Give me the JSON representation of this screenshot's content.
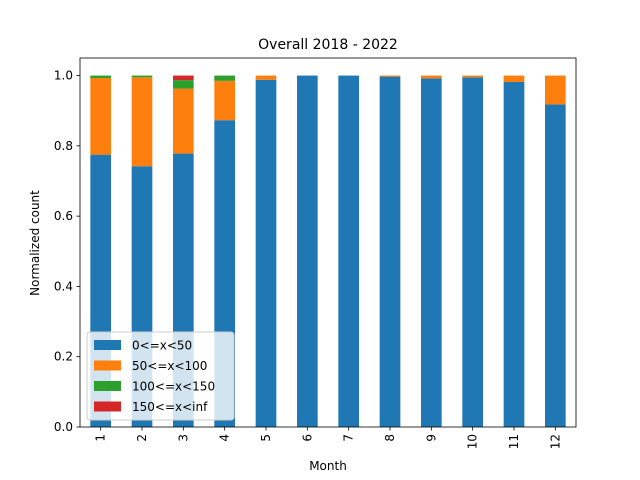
{
  "chart_data": {
    "type": "bar",
    "stacked": true,
    "title": "Overall 2018 - 2022",
    "xlabel": "Month",
    "ylabel": "Normalized count",
    "ylim": [
      0,
      1.05
    ],
    "yticks": [
      0.0,
      0.2,
      0.4,
      0.6,
      0.8,
      1.0
    ],
    "ytick_labels": [
      "0.0",
      "0.2",
      "0.4",
      "0.6",
      "0.8",
      "1.0"
    ],
    "categories": [
      "1",
      "2",
      "3",
      "4",
      "5",
      "6",
      "7",
      "8",
      "9",
      "10",
      "11",
      "12"
    ],
    "legend_position": "lower-left",
    "grid": false,
    "series": [
      {
        "name": "0<=x<50",
        "color": "#1f77b4",
        "values": [
          0.775,
          0.742,
          0.778,
          0.873,
          0.988,
          1.0,
          1.0,
          0.997,
          0.992,
          0.995,
          0.982,
          0.918
        ]
      },
      {
        "name": "50<=x<100",
        "color": "#ff7f0e",
        "values": [
          0.218,
          0.253,
          0.185,
          0.112,
          0.012,
          0.0,
          0.0,
          0.003,
          0.008,
          0.005,
          0.018,
          0.082
        ]
      },
      {
        "name": "100<=x<150",
        "color": "#2ca02c",
        "values": [
          0.007,
          0.005,
          0.024,
          0.015,
          0.0,
          0.0,
          0.0,
          0.0,
          0.0,
          0.0,
          0.0,
          0.0
        ]
      },
      {
        "name": "150<=x<inf",
        "color": "#d62728",
        "values": [
          0.0,
          0.0,
          0.013,
          0.0,
          0.0,
          0.0,
          0.0,
          0.0,
          0.0,
          0.0,
          0.0,
          0.0
        ]
      }
    ]
  }
}
